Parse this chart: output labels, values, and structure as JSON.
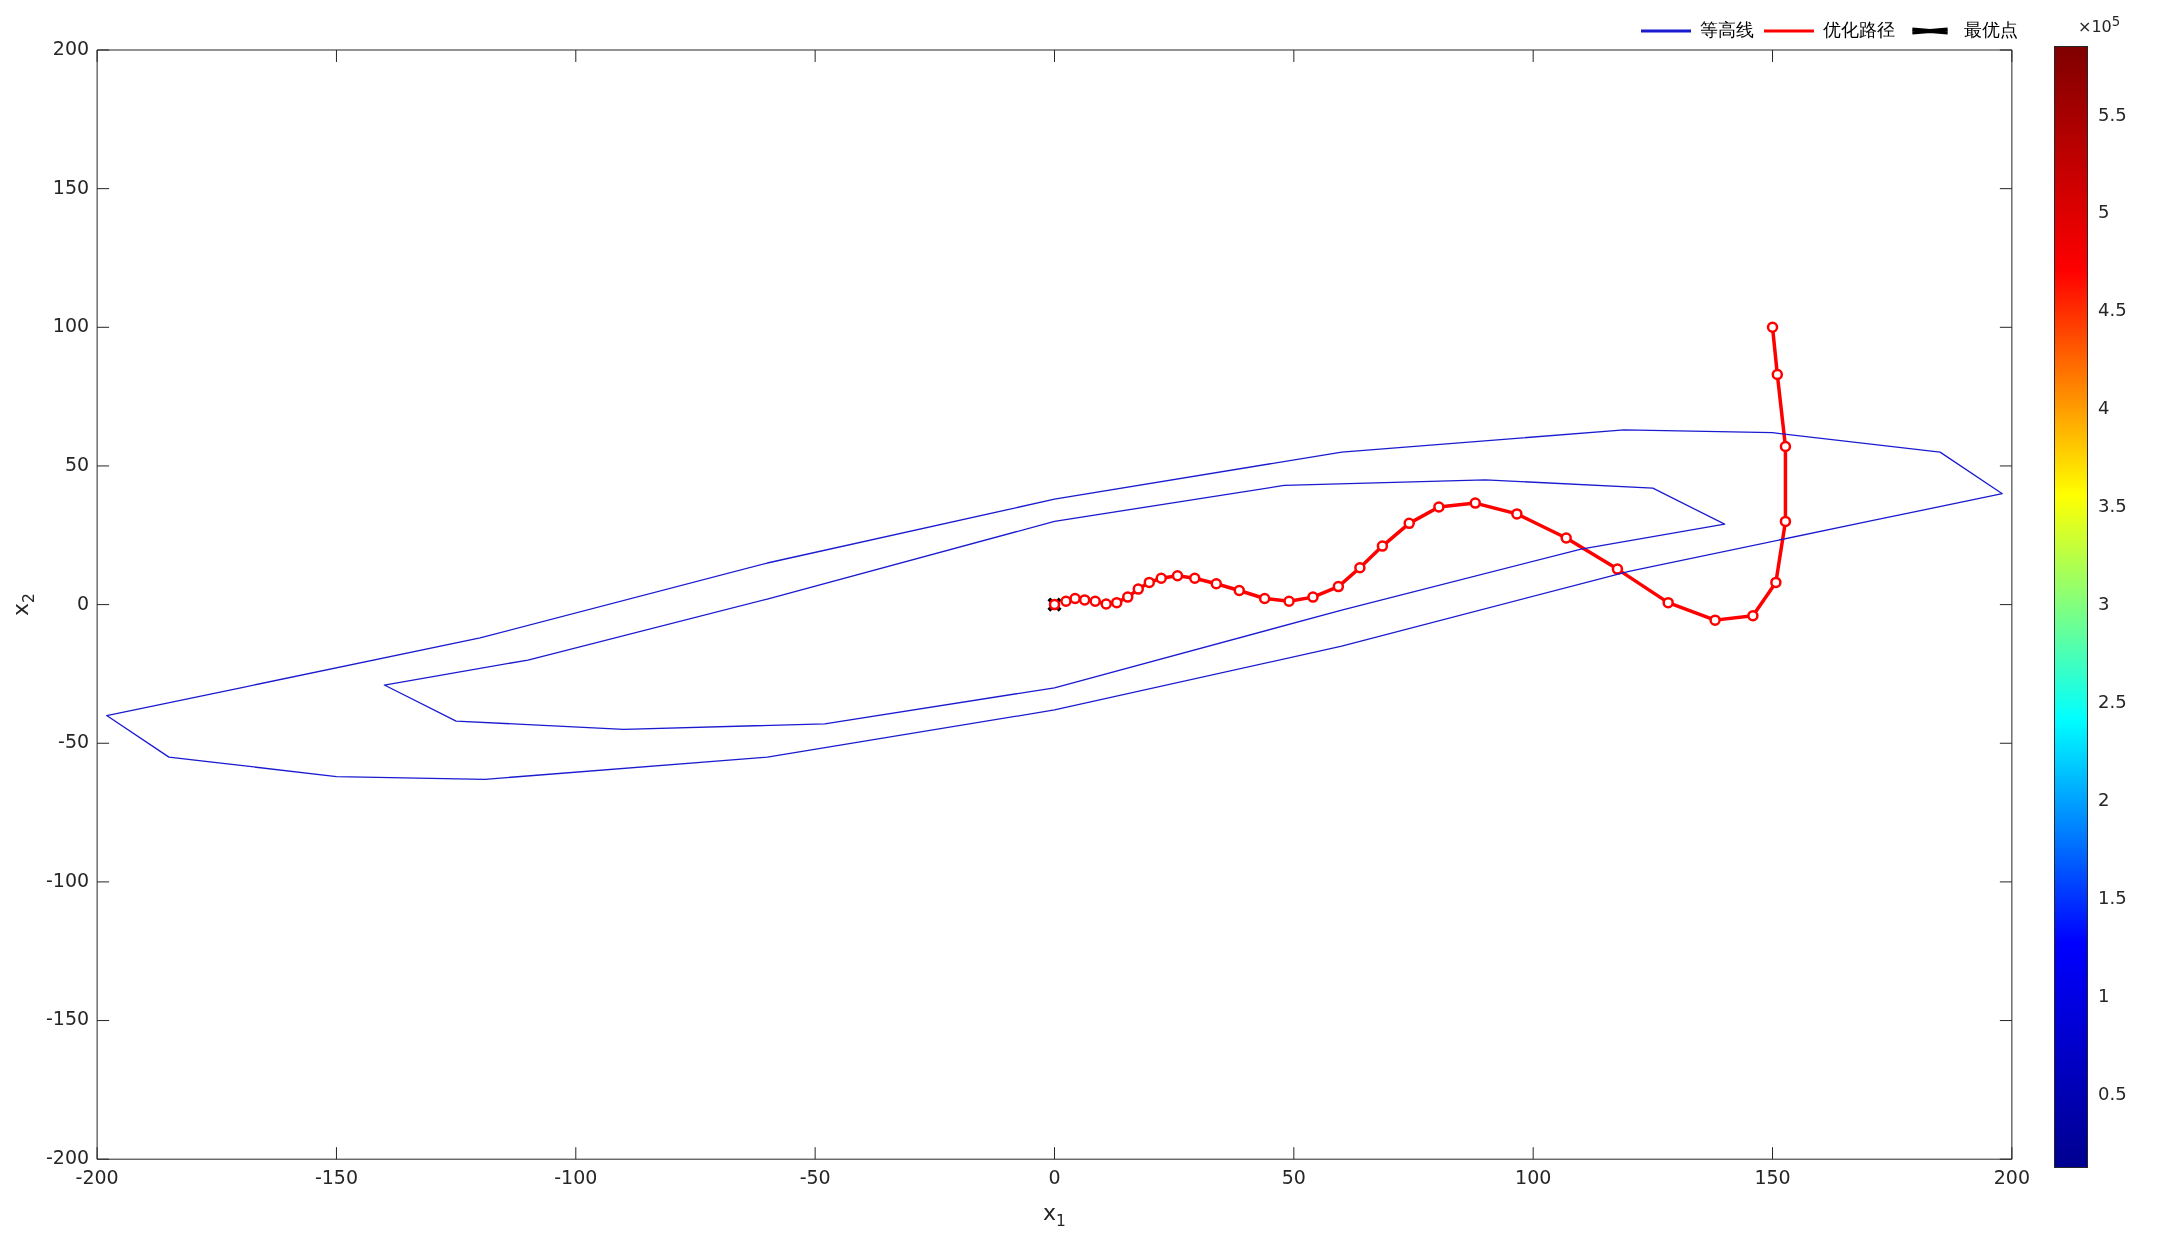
{
  "chart_data": {
    "type": "line",
    "xlabel": "x$_{1}$",
    "ylabel": "x$_{2}$",
    "xlim": [
      -200,
      200
    ],
    "ylim": [
      -200,
      200
    ],
    "xticks": [
      -200,
      -150,
      -100,
      -50,
      0,
      50,
      100,
      150,
      200
    ],
    "yticks": [
      -200,
      -150,
      -100,
      -50,
      0,
      50,
      100,
      150,
      200
    ],
    "grid": false,
    "legend": "top right",
    "clim": [
      0.12,
      5.85
    ],
    "cticks": [
      0.5,
      1,
      1.5,
      2,
      2.5,
      3,
      3.5,
      4,
      4.5,
      5,
      5.5
    ],
    "annotations": [
      "×10$^{5}$"
    ],
    "series": [
      {
        "name": "等高线",
        "color": "#1a1ad0",
        "marker": "none"
      },
      {
        "name": "优化路径",
        "color": "#ff0000",
        "marker": "circle",
        "x": [
          150,
          151,
          152.7,
          152.7,
          150.7,
          145.9,
          138,
          128.2,
          117.6,
          106.9,
          96.6,
          87.9,
          80.3,
          74.1,
          68.5,
          63.8,
          59.3,
          54,
          49,
          43.9,
          38.6,
          33.8,
          29.3,
          25.7,
          22.3,
          19.8,
          17.5,
          15.3,
          13,
          10.8,
          8.5,
          6.3,
          4.3,
          2.4,
          1,
          0
        ],
        "values": [
          100,
          83,
          57,
          30,
          8,
          -4,
          -5.6,
          0.7,
          12.8,
          24,
          32.7,
          36.6,
          35.2,
          29.3,
          21.1,
          13.3,
          6.5,
          2.7,
          1.2,
          2.2,
          5.1,
          7.5,
          9.5,
          10.4,
          9.5,
          8,
          5.6,
          2.7,
          0.7,
          0.2,
          1.2,
          1.7,
          2.2,
          1.2,
          null,
          0
        ]
      },
      {
        "name": "最优点",
        "type": "scatter",
        "color": "#000000",
        "marker": "cross",
        "x": [
          0
        ],
        "values": [
          0
        ]
      }
    ]
  }
}
